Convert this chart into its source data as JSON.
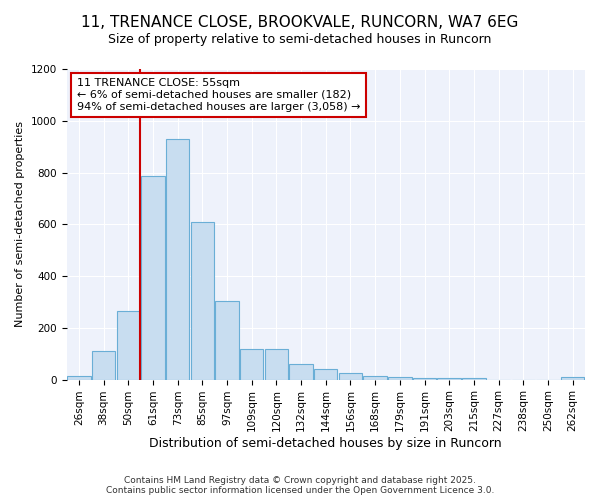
{
  "title1": "11, TRENANCE CLOSE, BROOKVALE, RUNCORN, WA7 6EG",
  "title2": "Size of property relative to semi-detached houses in Runcorn",
  "xlabel": "Distribution of semi-detached houses by size in Runcorn",
  "ylabel": "Number of semi-detached properties",
  "categories": [
    "26sqm",
    "38sqm",
    "50sqm",
    "61sqm",
    "73sqm",
    "85sqm",
    "97sqm",
    "109sqm",
    "120sqm",
    "132sqm",
    "144sqm",
    "156sqm",
    "168sqm",
    "179sqm",
    "191sqm",
    "203sqm",
    "215sqm",
    "227sqm",
    "238sqm",
    "250sqm",
    "262sqm"
  ],
  "values": [
    15,
    110,
    265,
    785,
    930,
    610,
    305,
    120,
    120,
    60,
    40,
    25,
    15,
    10,
    5,
    5,
    5,
    0,
    0,
    0,
    10
  ],
  "bar_color": "#c8ddf0",
  "bar_edge_color": "#6aaed6",
  "red_line_color": "#cc0000",
  "annotation_title": "11 TRENANCE CLOSE: 55sqm",
  "annotation_line1": "← 6% of semi-detached houses are smaller (182)",
  "annotation_line2": "94% of semi-detached houses are larger (3,058) →",
  "annotation_box_facecolor": "#ffffff",
  "annotation_border_color": "#cc0000",
  "ylim": [
    0,
    1200
  ],
  "yticks": [
    0,
    200,
    400,
    600,
    800,
    1000,
    1200
  ],
  "background_color": "#ffffff",
  "plot_bg_color": "#eef2fb",
  "grid_color": "#ffffff",
  "footer": "Contains HM Land Registry data © Crown copyright and database right 2025.\nContains public sector information licensed under the Open Government Licence 3.0.",
  "title1_fontsize": 11,
  "title2_fontsize": 9,
  "xlabel_fontsize": 9,
  "ylabel_fontsize": 8,
  "tick_fontsize": 7.5,
  "footer_fontsize": 6.5,
  "ann_fontsize": 8
}
